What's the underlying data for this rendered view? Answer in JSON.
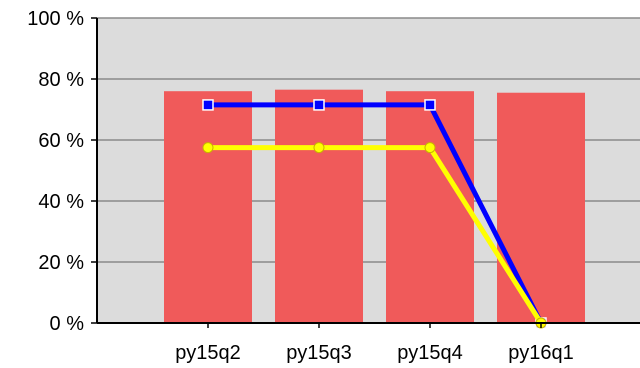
{
  "chart_data": {
    "type": "bar",
    "categories": [
      "py15q2",
      "py15q3",
      "py15q4",
      "py16q1"
    ],
    "values": [
      76,
      76.5,
      76,
      75.5
    ],
    "series": [
      {
        "type": "bar",
        "values": [
          76,
          76.5,
          76,
          75.5
        ],
        "color": "#f05a5a"
      },
      {
        "type": "line",
        "values": [
          71.5,
          71.5,
          71.5,
          0
        ],
        "color": "#0000ff",
        "marker": "square"
      },
      {
        "type": "line",
        "values": [
          57.5,
          57.5,
          57.5,
          0
        ],
        "color": "#ffff00",
        "marker": "circle"
      }
    ],
    "y_ticks": [
      "0 %",
      "20 %",
      "40 %",
      "60 %",
      "80 %",
      "100 %"
    ],
    "ylim": [
      0,
      100
    ],
    "grid": true,
    "plot_background": "#dcdcdc",
    "title": "",
    "xlabel": "",
    "ylabel": ""
  }
}
